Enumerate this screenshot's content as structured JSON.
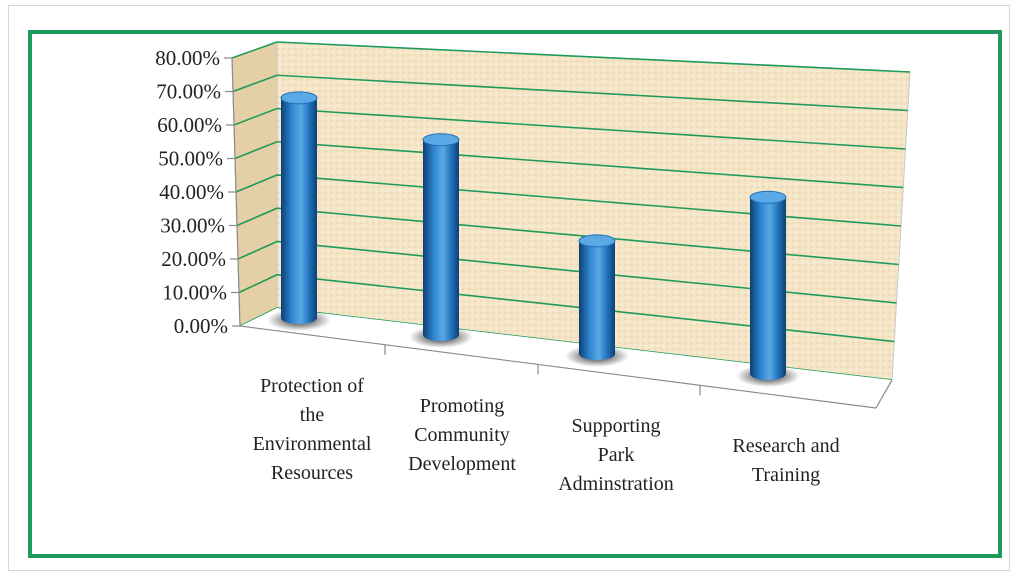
{
  "chart_data": {
    "type": "bar",
    "title": "",
    "xlabel": "",
    "ylabel": "",
    "categories": [
      [
        "Protection of",
        "the",
        "Environmental",
        "Resources"
      ],
      [
        "Promoting",
        "Community",
        "Development"
      ],
      [
        "Supporting",
        "Park",
        "Adminstration"
      ],
      [
        "Research and",
        "Training"
      ]
    ],
    "values": [
      0.71,
      0.63,
      0.365,
      0.57
    ],
    "y_ticks": [
      "0.00%",
      "10.00%",
      "20.00%",
      "30.00%",
      "40.00%",
      "50.00%",
      "60.00%",
      "70.00%",
      "80.00%"
    ],
    "ylim": [
      0,
      0.8
    ],
    "grid": true,
    "legend": "none",
    "style": "3d-cylinder",
    "colors": {
      "bar": "#1f6fb8",
      "bar_light": "#5aa8e6",
      "bar_dark": "#0d3f73",
      "grid": "#1f9a5b",
      "frame": "#1f9a5b",
      "wall": "#f3e3c3",
      "side_wall": "#e4cfa6"
    }
  }
}
